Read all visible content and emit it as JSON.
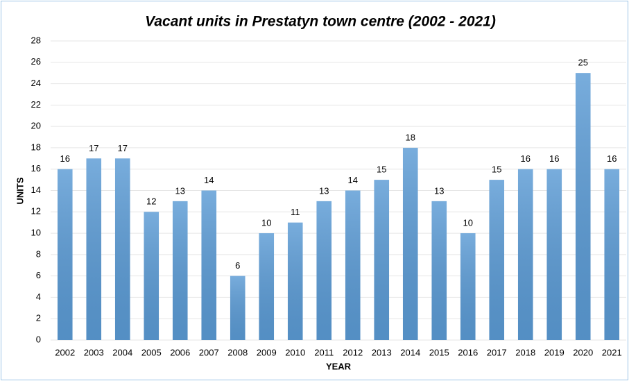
{
  "chart_data": {
    "type": "bar",
    "title": "Vacant units in Prestatyn town centre (2002 - 2021)",
    "xlabel": "YEAR",
    "ylabel": "UNITS",
    "categories": [
      "2002",
      "2003",
      "2004",
      "2005",
      "2006",
      "2007",
      "2008",
      "2009",
      "2010",
      "2011",
      "2012",
      "2013",
      "2014",
      "2015",
      "2016",
      "2017",
      "2018",
      "2019",
      "2020",
      "2021"
    ],
    "values": [
      16,
      17,
      17,
      12,
      13,
      14,
      6,
      10,
      11,
      13,
      14,
      15,
      18,
      13,
      10,
      15,
      16,
      16,
      25,
      16
    ],
    "color": "#5b9bd5",
    "ylim": [
      0,
      28
    ],
    "yticks": [
      0,
      2,
      4,
      6,
      8,
      10,
      12,
      14,
      16,
      18,
      20,
      22,
      24,
      26,
      28
    ],
    "grid": true
  }
}
